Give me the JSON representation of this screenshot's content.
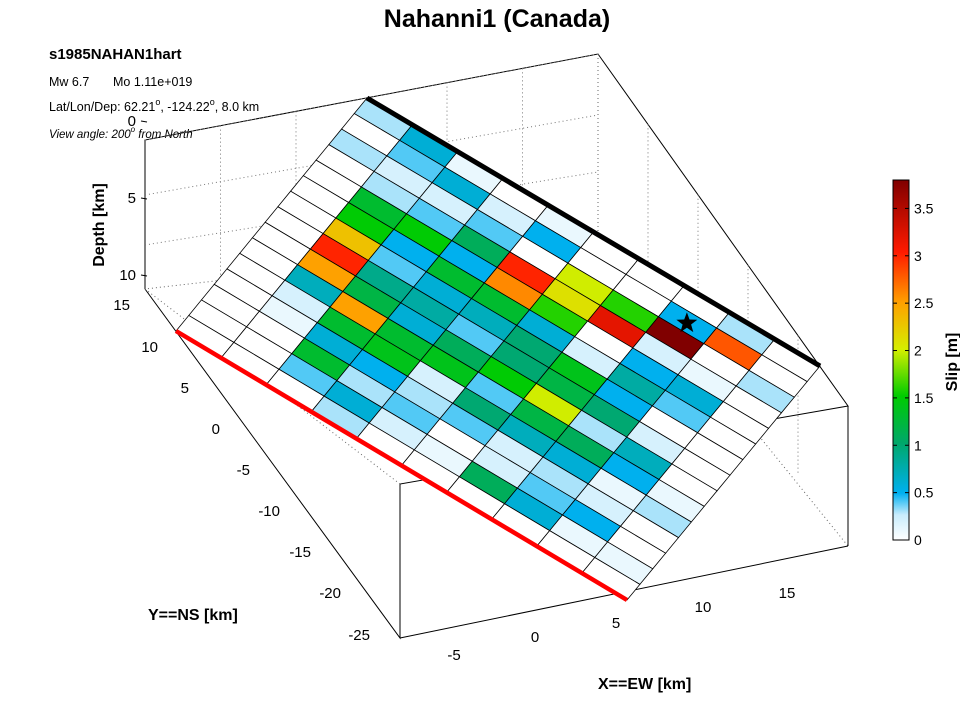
{
  "chart_data": {
    "type": "heatmap",
    "title": "Nahanni1 (Canada)",
    "event_id": "s1985NAHAN1hart",
    "magnitude_line": {
      "mw": "Mw 6.7",
      "mo": "Mo 1.11e+019"
    },
    "location": {
      "prefix": "Lat/Lon/Dep: 62.21",
      "lat_sup": "o",
      "lon": ", -124.22",
      "lon_sup": "o",
      "depth": ", 8.0 km"
    },
    "view_angle": {
      "prefix": "View angle: 200",
      "sup": "o",
      "suffix": " from North"
    },
    "xlabel": "X==EW [km]",
    "ylabel": "Y==NS [km]",
    "zlabel": "Depth [km]",
    "x_ticks": [
      "-5",
      "0",
      "5",
      "10",
      "15"
    ],
    "y_ticks": [
      "15",
      "10",
      "5",
      "0",
      "-5",
      "-10",
      "-15",
      "-20",
      "-25"
    ],
    "z_ticks": [
      "0",
      "5",
      "10"
    ],
    "colorbar": {
      "label": "Slip [m]",
      "min": 0,
      "max": 3.8,
      "ticks": [
        "0",
        "0.5",
        "1",
        "1.5",
        "2",
        "2.5",
        "3",
        "3.5"
      ],
      "colormap": "jet-white"
    },
    "grid": true,
    "fault_top_line_color": "#000000",
    "surface_trace_color": "#ff0000",
    "hypocenter_marker": "star",
    "hypocenter_cell": {
      "row": 7,
      "col": 1
    },
    "rows": 10,
    "cols": 15,
    "slip_m": [
      [
        0.3,
        0,
        0.3,
        0,
        0,
        0,
        0,
        0,
        0,
        0,
        0,
        0,
        0,
        0,
        0
      ],
      [
        0.6,
        0.4,
        0.2,
        0.3,
        1.3,
        1.5,
        2.3,
        3.0,
        2.5,
        0.7,
        0.2,
        0.1,
        0,
        0,
        0
      ],
      [
        0.1,
        0.6,
        0.2,
        0.4,
        1.5,
        0.5,
        0.4,
        0.9,
        1.2,
        2.5,
        1.3,
        0.6,
        1.3,
        0.4,
        0
      ],
      [
        0,
        0.2,
        0.4,
        1.1,
        0.5,
        1.3,
        0.6,
        0.8,
        0.6,
        1.3,
        1.4,
        0.5,
        0.3,
        0.6,
        0.3
      ],
      [
        0.1,
        0.5,
        0,
        3.0,
        2.6,
        1.3,
        0.7,
        0.4,
        1.1,
        1.4,
        0.2,
        0.3,
        0.4,
        0.2,
        0
      ],
      [
        0,
        0,
        2.0,
        2.1,
        1.6,
        0.6,
        1.0,
        1.0,
        1.5,
        0.4,
        1.0,
        0.4,
        0,
        0.1,
        0
      ],
      [
        0,
        0,
        1.6,
        3.2,
        0,
        0.2,
        1.4,
        1.2,
        2.0,
        1.2,
        0.7,
        0.2,
        0.2,
        1.1,
        0
      ],
      [
        0,
        0.5,
        3.8,
        0.2,
        0.5,
        0.8,
        0.5,
        1.0,
        0.3,
        1.1,
        0.6,
        0.3,
        0.4,
        0.6,
        0
      ],
      [
        0.3,
        2.8,
        0,
        0.1,
        0.6,
        0.4,
        0,
        0.2,
        0.7,
        0.5,
        0.1,
        0.2,
        0.5,
        0.1,
        0
      ],
      [
        0,
        0,
        0.3,
        0,
        0,
        0,
        0,
        0,
        0,
        0.1,
        0.3,
        0,
        0,
        0.1,
        0
      ]
    ]
  }
}
